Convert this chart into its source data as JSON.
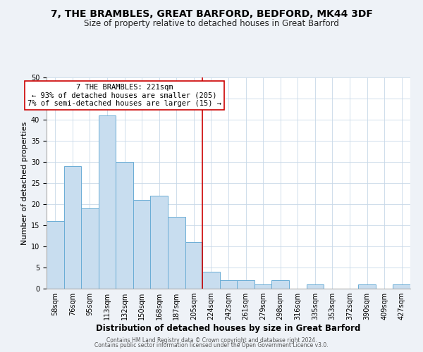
{
  "title": "7, THE BRAMBLES, GREAT BARFORD, BEDFORD, MK44 3DF",
  "subtitle": "Size of property relative to detached houses in Great Barford",
  "xlabel": "Distribution of detached houses by size in Great Barford",
  "ylabel": "Number of detached properties",
  "footer_line1": "Contains HM Land Registry data © Crown copyright and database right 2024.",
  "footer_line2": "Contains public sector information licensed under the Open Government Licence v3.0.",
  "bin_labels": [
    "58sqm",
    "76sqm",
    "95sqm",
    "113sqm",
    "132sqm",
    "150sqm",
    "168sqm",
    "187sqm",
    "205sqm",
    "224sqm",
    "242sqm",
    "261sqm",
    "279sqm",
    "298sqm",
    "316sqm",
    "335sqm",
    "353sqm",
    "372sqm",
    "390sqm",
    "409sqm",
    "427sqm"
  ],
  "bar_values": [
    16,
    29,
    19,
    41,
    30,
    21,
    22,
    17,
    11,
    4,
    2,
    2,
    1,
    2,
    0,
    1,
    0,
    0,
    1,
    0,
    1
  ],
  "bar_color": "#c8ddef",
  "bar_edge_color": "#6aadd5",
  "grid_color": "#c8d8e8",
  "bin_edges": [
    0,
    1,
    2,
    3,
    4,
    5,
    6,
    7,
    8,
    9,
    10,
    11,
    12,
    13,
    14,
    15,
    16,
    17,
    18,
    19,
    20,
    21
  ],
  "marker_bin": 9,
  "annotation_title": "7 THE BRAMBLES: 221sqm",
  "annotation_line1": "← 93% of detached houses are smaller (205)",
  "annotation_line2": "7% of semi-detached houses are larger (15) →",
  "marker_line_color": "#cc0000",
  "annotation_box_edge": "#cc0000",
  "ylim": [
    0,
    50
  ],
  "yticks": [
    0,
    5,
    10,
    15,
    20,
    25,
    30,
    35,
    40,
    45,
    50
  ],
  "background_color": "#eef2f7",
  "plot_background": "#ffffff",
  "title_fontsize": 10,
  "subtitle_fontsize": 8.5,
  "axis_label_fontsize": 8,
  "tick_fontsize": 7,
  "annotation_fontsize": 7.5,
  "footer_fontsize": 5.5
}
